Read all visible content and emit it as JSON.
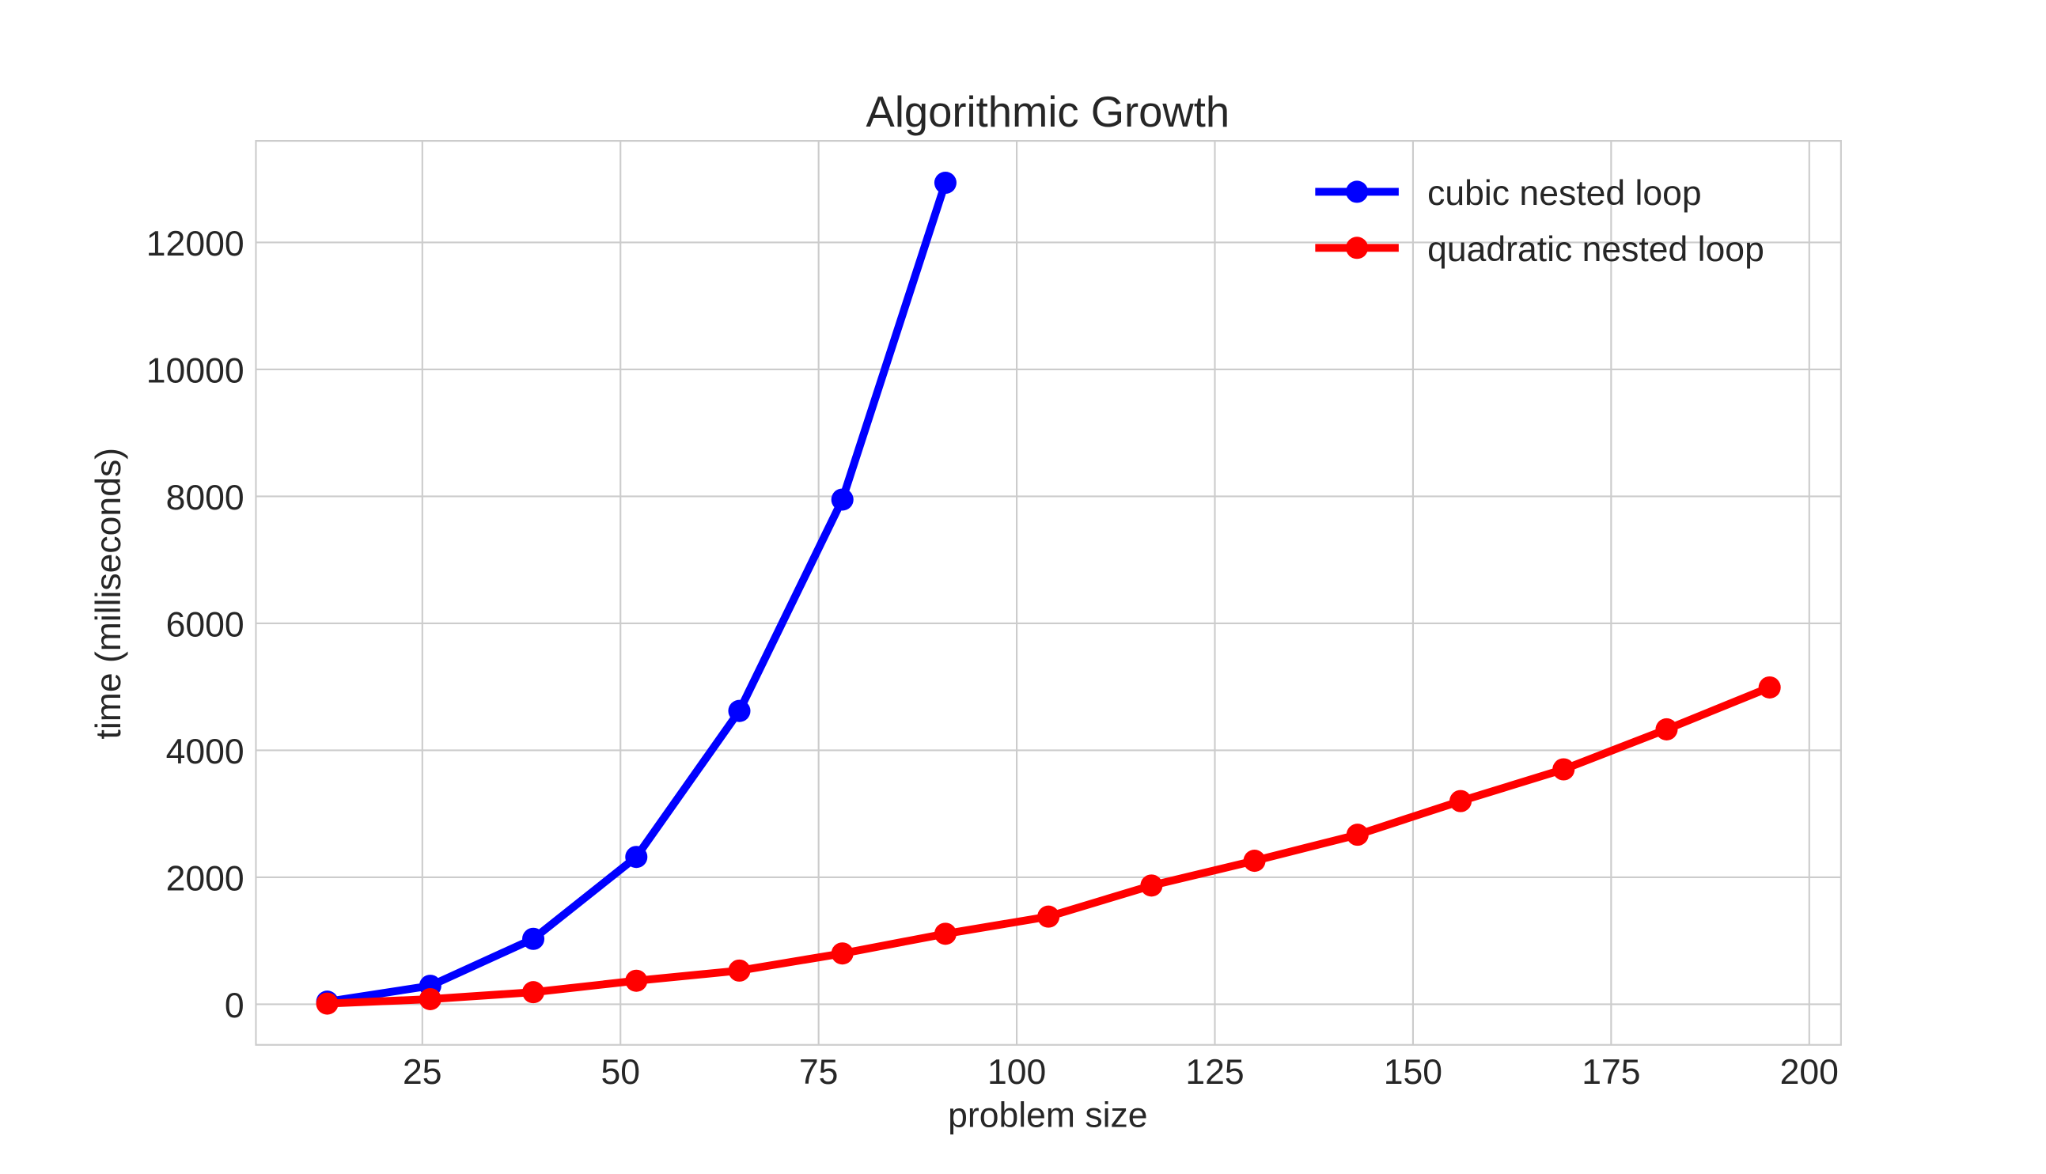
{
  "chart_data": {
    "type": "line",
    "title": "Algorithmic Growth",
    "xlabel": "problem size",
    "ylabel": "time (milliseconds)",
    "xlim": [
      4,
      204
    ],
    "ylim": [
      -640,
      13600
    ],
    "xticks": [
      25,
      50,
      75,
      100,
      125,
      150,
      175,
      200
    ],
    "yticks": [
      0,
      2000,
      4000,
      6000,
      8000,
      10000,
      12000
    ],
    "grid": true,
    "legend": "top-right",
    "series": [
      {
        "name": "cubic nested loop",
        "color": "#0000ff",
        "x": [
          13,
          26,
          39,
          52,
          65,
          78,
          91
        ],
        "y": [
          40,
          290,
          1030,
          2320,
          4620,
          7950,
          12940
        ]
      },
      {
        "name": "quadratic nested loop",
        "color": "#ff0000",
        "x": [
          13,
          26,
          39,
          52,
          65,
          78,
          91,
          104,
          117,
          130,
          143,
          156,
          169,
          182,
          195
        ],
        "y": [
          10,
          80,
          190,
          370,
          530,
          800,
          1110,
          1380,
          1870,
          2260,
          2670,
          3200,
          3700,
          4330,
          4990
        ]
      }
    ]
  }
}
